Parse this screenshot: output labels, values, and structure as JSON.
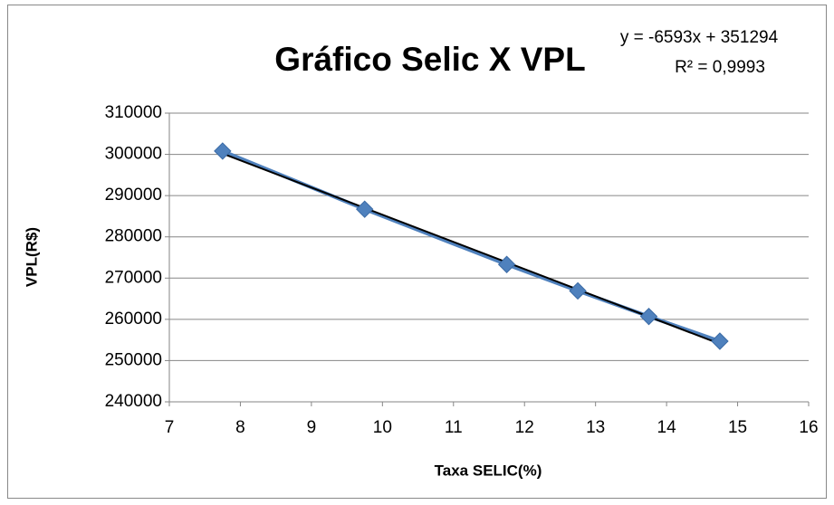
{
  "chart_data": {
    "type": "scatter-line",
    "title": "Gráfico Selic X VPL",
    "x_label": "Taxa SELIC(%)",
    "y_label": "VPL(R$)",
    "x": [
      7.75,
      9.75,
      11.75,
      12.75,
      13.75,
      14.75
    ],
    "series": [
      {
        "name": "VPL",
        "color": "#4f81bd",
        "values": [
          300800,
          286700,
          273300,
          266900,
          260700,
          254700
        ]
      }
    ],
    "trendline": {
      "slope": -6593,
      "intercept": 351294,
      "color": "#000000",
      "equation": "y = -6593x + 351294",
      "r2": "R² = 0,9993"
    },
    "xlim": [
      7,
      16
    ],
    "xticks": [
      7,
      8,
      9,
      10,
      11,
      12,
      13,
      14,
      15,
      16
    ],
    "ylim": [
      240000,
      310000
    ],
    "yticks": [
      240000,
      250000,
      260000,
      270000,
      280000,
      290000,
      300000,
      310000
    ],
    "grid": true
  }
}
